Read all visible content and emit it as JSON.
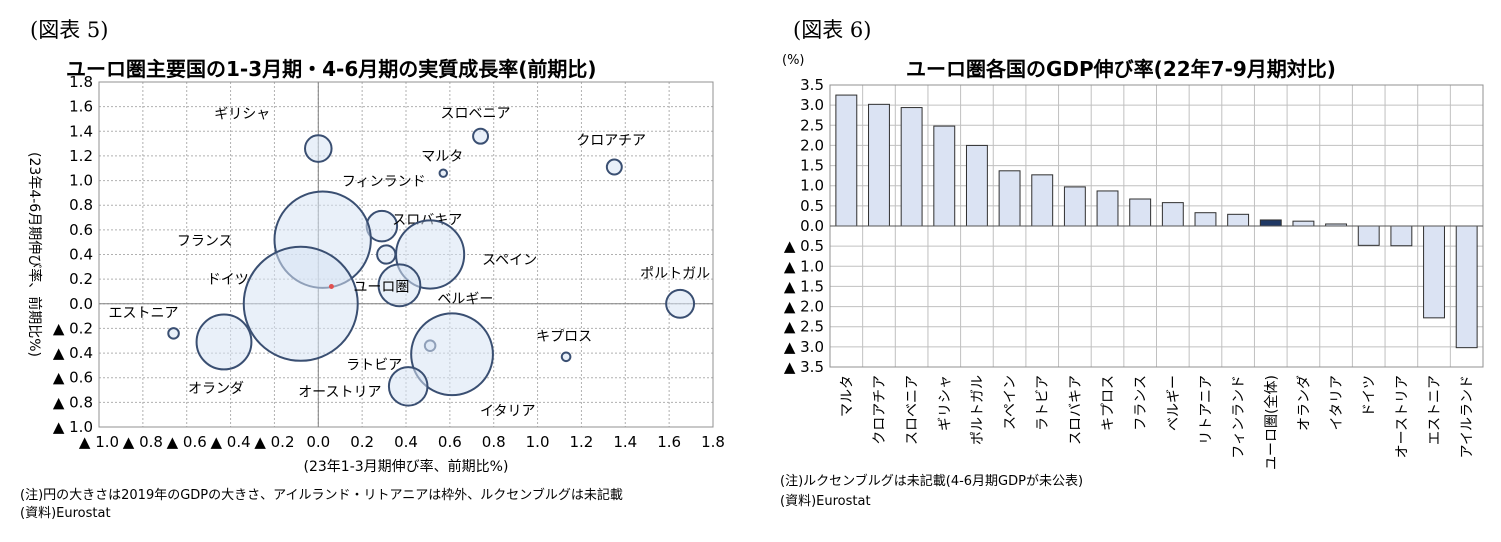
{
  "left": {
    "fig_label": "(図表 5)",
    "title": "ユーロ圏主要国の1-3月期・4-6月期の実質成長率(前期比)",
    "note": "(注)円の大きさは2019年のGDPの大きさ、アイルランド・リトアニアは枠外、ルクセンブルグは未記載",
    "source": "(資料)Eurostat"
  },
  "right": {
    "fig_label": "(図表 6)",
    "title": "ユーロ圏各国のGDP伸び率(22年7-9月期対比)",
    "unit": "(%)",
    "note": "(注)ルクセンブルグは未記載(4-6月期GDPが未公表)",
    "source": "(資料)Eurostat"
  },
  "chart_data": [
    {
      "type": "scatter",
      "subtype": "bubble",
      "title": "ユーロ圏主要国の1-3月期・4-6月期の実質成長率(前期比)",
      "xlabel": "(23年1-3月期伸び率、前期比%)",
      "ylabel": "(23年4-6月期伸び率、前期比%)",
      "xlim": [
        -1.0,
        1.8
      ],
      "ylim": [
        -1.0,
        1.8
      ],
      "xticks": [
        -1.0,
        -0.8,
        -0.6,
        -0.4,
        -0.2,
        0.0,
        0.2,
        0.4,
        0.6,
        0.8,
        1.0,
        1.2,
        1.4,
        1.6,
        1.8
      ],
      "yticks": [
        -1.0,
        -0.8,
        -0.6,
        -0.4,
        -0.2,
        0.0,
        0.2,
        0.4,
        0.6,
        0.8,
        1.0,
        1.2,
        1.4,
        1.6,
        1.8
      ],
      "xtick_labels": [
        "▲ 1.0",
        "▲ 0.8",
        "▲ 0.6",
        "▲ 0.4",
        "▲ 0.2",
        "0.0",
        "0.2",
        "0.4",
        "0.6",
        "0.8",
        "1.0",
        "1.2",
        "1.4",
        "1.6",
        "1.8"
      ],
      "ytick_labels": [
        "▲ 1.0",
        "▲ 0.8",
        "▲ 0.6",
        "▲ 0.4",
        "▲ 0.2",
        "0.0",
        "0.2",
        "0.4",
        "0.6",
        "0.8",
        "1.0",
        "1.2",
        "1.4",
        "1.6",
        "1.8"
      ],
      "grid": true,
      "points": [
        {
          "name": "ギリシャ",
          "x": 0.0,
          "y": 1.26,
          "size": 0.19
        },
        {
          "name": "スロベニア",
          "x": 0.74,
          "y": 1.36,
          "size": 0.06
        },
        {
          "name": "マルタ",
          "x": 0.57,
          "y": 1.06,
          "size": 0.015
        },
        {
          "name": "クロアチア",
          "x": 1.35,
          "y": 1.11,
          "size": 0.06
        },
        {
          "name": "フィンランド",
          "x": 0.29,
          "y": 0.63,
          "size": 0.25
        },
        {
          "name": "フランス",
          "x": 0.02,
          "y": 0.52,
          "size": 2.5
        },
        {
          "name": "スロバキア",
          "x": 0.31,
          "y": 0.4,
          "size": 0.09
        },
        {
          "name": "スペイン",
          "x": 0.51,
          "y": 0.4,
          "size": 1.25
        },
        {
          "name": "ベルギー",
          "x": 0.37,
          "y": 0.15,
          "size": 0.47
        },
        {
          "name": "ドイツ",
          "x": -0.08,
          "y": 0.0,
          "size": 3.5
        },
        {
          "name": "ポルトガル",
          "x": 1.65,
          "y": 0.0,
          "size": 0.21
        },
        {
          "name": "ユーロ圏",
          "x": 0.06,
          "y": 0.14,
          "size": 0.0
        },
        {
          "name": "エストニア",
          "x": -0.66,
          "y": -0.24,
          "size": 0.03
        },
        {
          "name": "オランダ",
          "x": -0.43,
          "y": -0.31,
          "size": 0.81
        },
        {
          "name": "ラトビア",
          "x": 0.51,
          "y": -0.34,
          "size": 0.03
        },
        {
          "name": "キプロス",
          "x": 1.13,
          "y": -0.43,
          "size": 0.02
        },
        {
          "name": "イタリア",
          "x": 0.61,
          "y": -0.41,
          "size": 1.8
        },
        {
          "name": "オーストリア",
          "x": 0.41,
          "y": -0.67,
          "size": 0.4
        }
      ]
    },
    {
      "type": "bar",
      "title": "ユーロ圏各国のGDP伸び率(22年7-9月期対比)",
      "ylabel": "(%)",
      "ylim": [
        -3.5,
        3.5
      ],
      "yticks": [
        3.5,
        3.0,
        2.5,
        2.0,
        1.5,
        1.0,
        0.5,
        0.0,
        -0.5,
        -1.0,
        -1.5,
        -2.0,
        -2.5,
        -3.0,
        -3.5
      ],
      "ytick_labels": [
        "3.5",
        "3.0",
        "2.5",
        "2.0",
        "1.5",
        "1.0",
        "0.5",
        "0.0",
        "▲ 0.5",
        "▲ 1.0",
        "▲ 1.5",
        "▲ 2.0",
        "▲ 2.5",
        "▲ 3.0",
        "▲ 3.5"
      ],
      "grid": true,
      "highlight_category": "ユーロ圏(全体)",
      "bar_color": "#dbe3f3",
      "highlight_color": "#1f3864",
      "categories": [
        "マルタ",
        "クロアチア",
        "スロベニア",
        "ギリシャ",
        "ポルトガル",
        "スペイン",
        "ラトビア",
        "スロバキア",
        "キプロス",
        "フランス",
        "ベルギー",
        "リトアニア",
        "フィンランド",
        "ユーロ圏(全体)",
        "オランダ",
        "イタリア",
        "ドイツ",
        "オーストリア",
        "エストニア",
        "アイルランド"
      ],
      "values": [
        3.25,
        3.02,
        2.94,
        2.48,
        2.0,
        1.37,
        1.27,
        0.97,
        0.87,
        0.67,
        0.58,
        0.33,
        0.29,
        0.15,
        0.12,
        0.05,
        -0.48,
        -0.49,
        -2.28,
        -3.02
      ]
    }
  ]
}
